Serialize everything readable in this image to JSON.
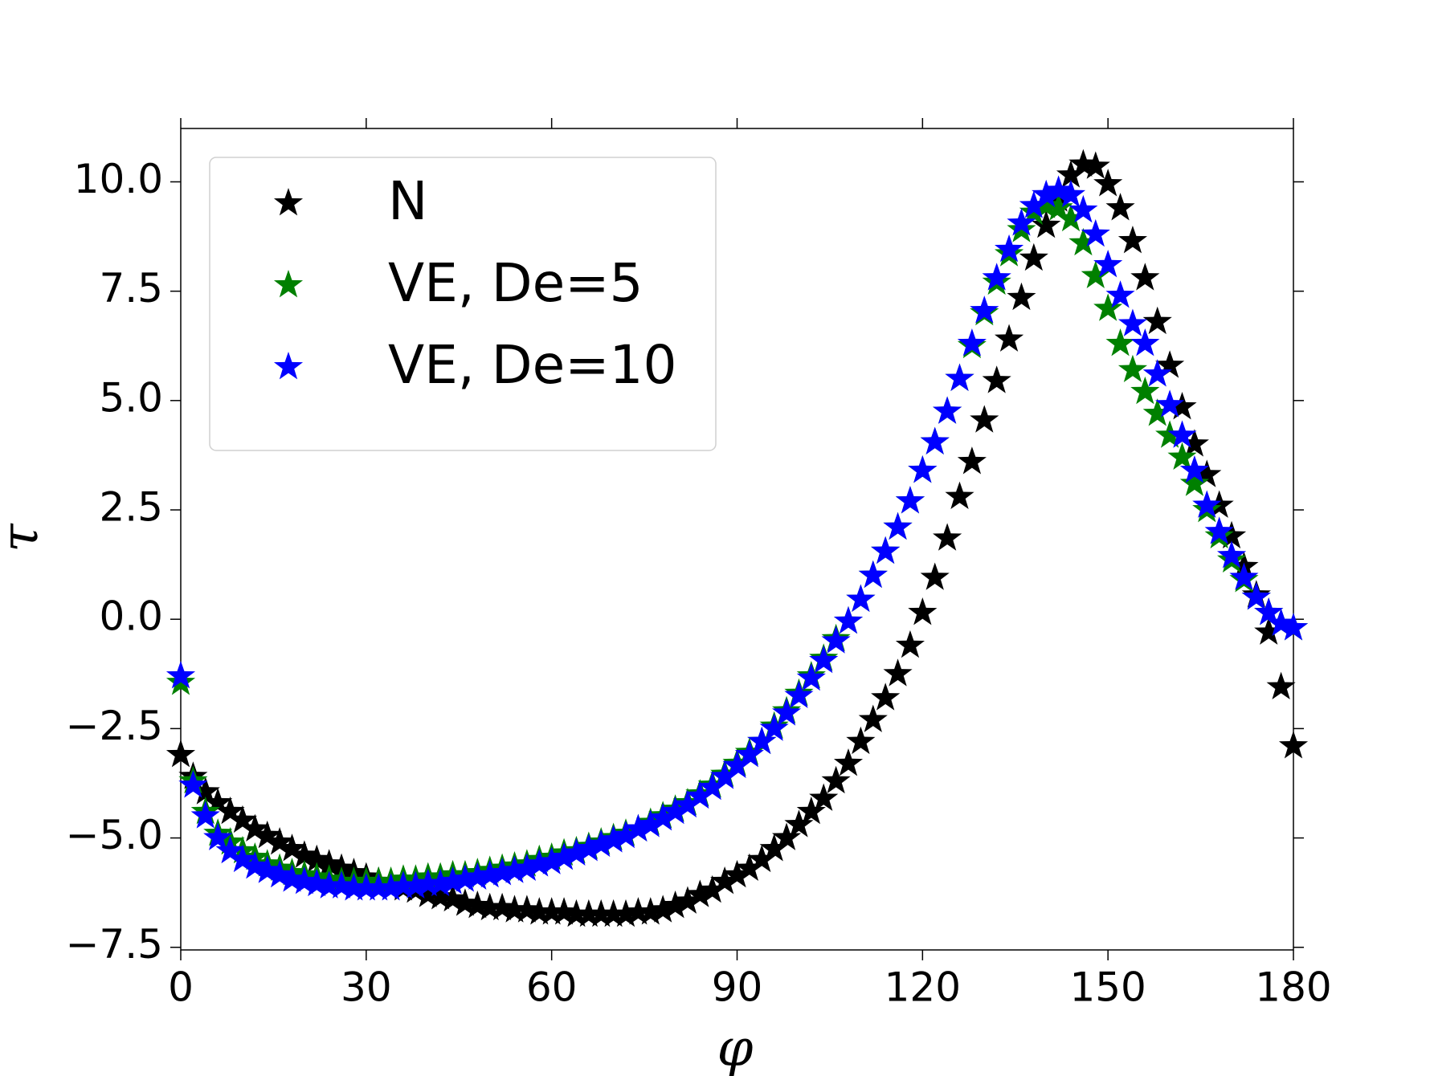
{
  "chart_data": {
    "type": "scatter",
    "xlabel": "φ",
    "ylabel": "τ",
    "xlim": [
      0,
      180
    ],
    "ylim": [
      -7.56,
      11.22
    ],
    "xticks": [
      0,
      30,
      60,
      90,
      120,
      150,
      180
    ],
    "yticks": [
      {
        "value": -7.5,
        "label": "−7.5"
      },
      {
        "value": -5,
        "label": "−5.0"
      },
      {
        "value": -2.5,
        "label": "−2.5"
      },
      {
        "value": 0,
        "label": "0.0"
      },
      {
        "value": 2.5,
        "label": "2.5"
      },
      {
        "value": 5,
        "label": "5.0"
      },
      {
        "value": 7.5,
        "label": "7.5"
      },
      {
        "value": 10,
        "label": "10.0"
      }
    ],
    "legend": "upper left",
    "marker": "star",
    "x": [
      0,
      2,
      4,
      6,
      8,
      10,
      12,
      14,
      16,
      18,
      20,
      22,
      24,
      26,
      28,
      30,
      32,
      34,
      36,
      38,
      40,
      42,
      44,
      46,
      48,
      50,
      52,
      54,
      56,
      58,
      60,
      62,
      64,
      66,
      68,
      70,
      72,
      74,
      76,
      78,
      80,
      82,
      84,
      86,
      88,
      90,
      92,
      94,
      96,
      98,
      100,
      102,
      104,
      106,
      108,
      110,
      112,
      114,
      116,
      118,
      120,
      122,
      124,
      126,
      128,
      130,
      132,
      134,
      136,
      138,
      140,
      142,
      144,
      146,
      148,
      150,
      152,
      154,
      156,
      158,
      160,
      162,
      164,
      166,
      168,
      170,
      172,
      174,
      176,
      178,
      180
    ],
    "series": [
      {
        "name": "N",
        "color": "#000000",
        "values": [
          -3.1,
          -3.6,
          -3.95,
          -4.2,
          -4.4,
          -4.6,
          -4.8,
          -4.95,
          -5.1,
          -5.25,
          -5.4,
          -5.5,
          -5.6,
          -5.7,
          -5.8,
          -5.9,
          -6.0,
          -6.05,
          -6.15,
          -6.2,
          -6.3,
          -6.35,
          -6.4,
          -6.5,
          -6.55,
          -6.6,
          -6.6,
          -6.65,
          -6.65,
          -6.7,
          -6.7,
          -6.7,
          -6.75,
          -6.75,
          -6.75,
          -6.75,
          -6.75,
          -6.7,
          -6.7,
          -6.65,
          -6.55,
          -6.45,
          -6.3,
          -6.2,
          -6.0,
          -5.85,
          -5.7,
          -5.5,
          -5.25,
          -5.0,
          -4.7,
          -4.4,
          -4.1,
          -3.7,
          -3.3,
          -2.8,
          -2.3,
          -1.8,
          -1.25,
          -0.6,
          0.15,
          0.95,
          1.85,
          2.8,
          3.6,
          4.55,
          5.45,
          6.4,
          7.35,
          8.25,
          9.0,
          9.6,
          10.15,
          10.4,
          10.35,
          9.95,
          9.4,
          8.65,
          7.8,
          6.8,
          5.8,
          4.85,
          4.0,
          3.3,
          2.6,
          1.9,
          1.2,
          0.55,
          -0.3,
          -1.55,
          -2.9
        ]
      },
      {
        "name": "VE, De=5",
        "color": "#008000",
        "values": [
          -1.45,
          -3.7,
          -4.4,
          -4.9,
          -5.1,
          -5.3,
          -5.45,
          -5.6,
          -5.7,
          -5.8,
          -5.85,
          -5.9,
          -5.95,
          -6.0,
          -6.0,
          -6.0,
          -6.0,
          -6.0,
          -5.95,
          -5.95,
          -5.9,
          -5.9,
          -5.85,
          -5.85,
          -5.8,
          -5.75,
          -5.7,
          -5.65,
          -5.6,
          -5.5,
          -5.45,
          -5.35,
          -5.3,
          -5.2,
          -5.1,
          -5.0,
          -4.9,
          -4.8,
          -4.65,
          -4.5,
          -4.35,
          -4.2,
          -4.0,
          -3.8,
          -3.55,
          -3.3,
          -3.05,
          -2.8,
          -2.45,
          -2.1,
          -1.7,
          -1.3,
          -0.9,
          -0.45,
          -0.05,
          0.45,
          1.0,
          1.55,
          2.1,
          2.7,
          3.4,
          4.05,
          4.75,
          5.5,
          6.25,
          7.0,
          7.7,
          8.35,
          8.9,
          9.3,
          9.45,
          9.4,
          9.15,
          8.6,
          7.85,
          7.1,
          6.3,
          5.7,
          5.2,
          4.7,
          4.2,
          3.7,
          3.1,
          2.5,
          1.9,
          1.35,
          0.9,
          0.5,
          0.15,
          -0.1,
          -0.2
        ]
      },
      {
        "name": "VE, De=10",
        "color": "#0000ff",
        "values": [
          -1.3,
          -3.8,
          -4.5,
          -5.0,
          -5.3,
          -5.5,
          -5.65,
          -5.75,
          -5.85,
          -5.95,
          -6.0,
          -6.05,
          -6.1,
          -6.1,
          -6.15,
          -6.15,
          -6.15,
          -6.15,
          -6.1,
          -6.1,
          -6.05,
          -6.05,
          -6.0,
          -5.95,
          -5.9,
          -5.85,
          -5.8,
          -5.75,
          -5.7,
          -5.6,
          -5.55,
          -5.45,
          -5.35,
          -5.25,
          -5.15,
          -5.05,
          -4.95,
          -4.8,
          -4.7,
          -4.55,
          -4.4,
          -4.25,
          -4.05,
          -3.85,
          -3.6,
          -3.35,
          -3.1,
          -2.8,
          -2.5,
          -2.15,
          -1.75,
          -1.35,
          -0.95,
          -0.5,
          -0.05,
          0.45,
          1.0,
          1.55,
          2.1,
          2.7,
          3.4,
          4.05,
          4.75,
          5.5,
          6.3,
          7.05,
          7.8,
          8.45,
          9.05,
          9.45,
          9.7,
          9.8,
          9.7,
          9.35,
          8.8,
          8.1,
          7.4,
          6.75,
          6.3,
          5.6,
          4.9,
          4.2,
          3.4,
          2.6,
          2.0,
          1.45,
          0.95,
          0.5,
          0.15,
          -0.1,
          -0.2
        ]
      }
    ]
  }
}
